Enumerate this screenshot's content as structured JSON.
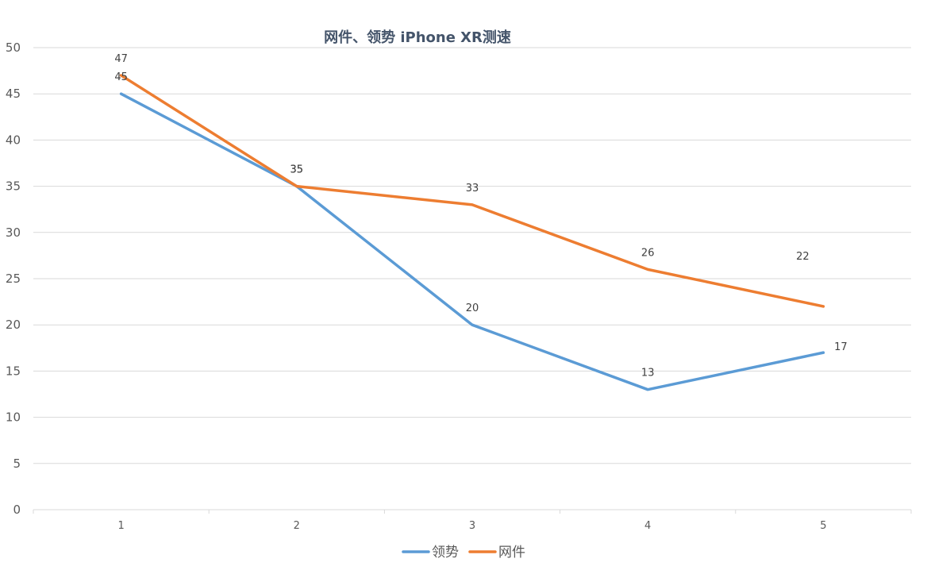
{
  "chart_data": {
    "type": "line",
    "title": "网件、领势 iPhone XR测速",
    "xlabel": "",
    "ylabel": "",
    "x": [
      1,
      2,
      3,
      4,
      5
    ],
    "ylim": [
      0,
      50
    ],
    "y_ticks": [
      0,
      5,
      10,
      15,
      20,
      25,
      30,
      35,
      40,
      45,
      50
    ],
    "grid": true,
    "legend_position": "bottom",
    "series": [
      {
        "name": "领势",
        "values": [
          45,
          35,
          20,
          13,
          17
        ],
        "color": "#5b9bd5"
      },
      {
        "name": "网件",
        "values": [
          47,
          35,
          33,
          26,
          22
        ],
        "color": "#ed7d31"
      }
    ]
  }
}
